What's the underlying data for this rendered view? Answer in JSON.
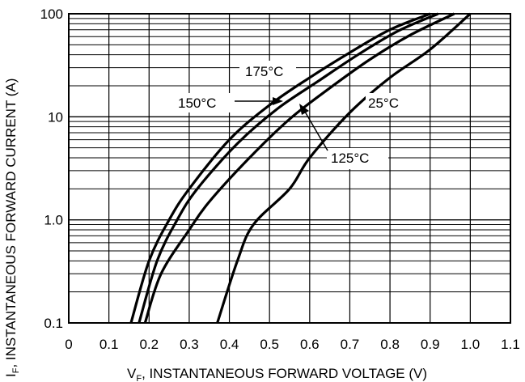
{
  "chart_data": {
    "type": "line",
    "xlabel_main": "V",
    "xlabel_sub": "F",
    "xlabel_rest": ", INSTANTANEOUS FORWARD VOLTAGE (V)",
    "ylabel_main": "I",
    "ylabel_sub": "F",
    "ylabel_rest": ", INSTANTANEOUS FORWARD CURRENT (A)",
    "xlim": [
      0,
      1.1
    ],
    "ylim": [
      0.1,
      100
    ],
    "y_scale": "log",
    "grid": true,
    "x_ticks": [
      "0",
      "0.1",
      "0.2",
      "0.3",
      "0.4",
      "0.5",
      "0.6",
      "0.7",
      "0.8",
      "0.9",
      "1.0",
      "1.1"
    ],
    "y_ticks": [
      "0.1",
      "1.0",
      "10",
      "100"
    ],
    "series": [
      {
        "name": "175°C",
        "points": [
          [
            0.155,
            0.1
          ],
          [
            0.2,
            0.4
          ],
          [
            0.25,
            1.0
          ],
          [
            0.3,
            2.0
          ],
          [
            0.4,
            6.0
          ],
          [
            0.5,
            13.0
          ],
          [
            0.6,
            24.0
          ],
          [
            0.7,
            42.0
          ],
          [
            0.8,
            70.0
          ],
          [
            0.9,
            100.0
          ]
        ]
      },
      {
        "name": "150°C",
        "points": [
          [
            0.175,
            0.1
          ],
          [
            0.22,
            0.4
          ],
          [
            0.27,
            1.0
          ],
          [
            0.32,
            2.0
          ],
          [
            0.42,
            5.5
          ],
          [
            0.52,
            12.0
          ],
          [
            0.62,
            22.0
          ],
          [
            0.72,
            40.0
          ],
          [
            0.82,
            68.0
          ],
          [
            0.92,
            100.0
          ]
        ]
      },
      {
        "name": "125°C",
        "points": [
          [
            0.19,
            0.1
          ],
          [
            0.23,
            0.3
          ],
          [
            0.3,
            0.8
          ],
          [
            0.35,
            1.5
          ],
          [
            0.45,
            4.0
          ],
          [
            0.55,
            9.5
          ],
          [
            0.65,
            19.0
          ],
          [
            0.75,
            36.0
          ],
          [
            0.85,
            62.0
          ],
          [
            0.96,
            100.0
          ]
        ]
      },
      {
        "name": "25°C",
        "points": [
          [
            0.37,
            0.1
          ],
          [
            0.42,
            0.4
          ],
          [
            0.46,
            0.9
          ],
          [
            0.55,
            2.0
          ],
          [
            0.6,
            4.0
          ],
          [
            0.7,
            11.0
          ],
          [
            0.8,
            24.0
          ],
          [
            0.9,
            45.0
          ],
          [
            1.0,
            100.0
          ]
        ]
      }
    ]
  }
}
